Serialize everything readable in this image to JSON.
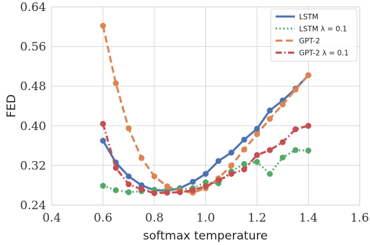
{
  "chart_data": {
    "type": "line",
    "xlabel": "softmax temperature",
    "ylabel": "FED",
    "xlim": [
      0.4,
      1.6
    ],
    "ylim": [
      0.24,
      0.64
    ],
    "xticks": [
      "0.4",
      "0.6",
      "0.8",
      "1.0",
      "1.2",
      "1.4",
      "1.6"
    ],
    "yticks": [
      "0.24",
      "0.32",
      "0.40",
      "0.48",
      "0.56",
      "0.64"
    ],
    "grid": true,
    "legend_position": "top-right",
    "series": [
      {
        "name": "LSTM",
        "color": "#4c72b0",
        "linestyle": "solid",
        "x": [
          0.6,
          0.65,
          0.7,
          0.75,
          0.8,
          0.85,
          0.9,
          0.95,
          1.0,
          1.05,
          1.1,
          1.15,
          1.2,
          1.25,
          1.3,
          1.35,
          1.4
        ],
        "y": [
          0.37,
          0.326,
          0.298,
          0.28,
          0.27,
          0.269,
          0.274,
          0.287,
          0.303,
          0.329,
          0.346,
          0.372,
          0.394,
          0.431,
          0.451,
          0.475,
          0.502
        ]
      },
      {
        "name": "LSTM λ = 0.1",
        "color": "#55a868",
        "linestyle": "dotted",
        "x": [
          0.6,
          0.65,
          0.7,
          0.75,
          0.8,
          0.85,
          0.9,
          0.95,
          1.0,
          1.05,
          1.1,
          1.15,
          1.2,
          1.25,
          1.3,
          1.35,
          1.4
        ],
        "y": [
          0.279,
          0.27,
          0.266,
          0.268,
          0.271,
          0.271,
          0.272,
          0.274,
          0.286,
          0.284,
          0.308,
          0.323,
          0.327,
          0.303,
          0.336,
          0.351,
          0.35
        ]
      },
      {
        "name": "GPT-2",
        "color": "#dd8452",
        "linestyle": "dashed",
        "x": [
          0.6,
          0.65,
          0.7,
          0.75,
          0.8,
          0.85,
          0.9,
          0.95,
          1.0,
          1.05,
          1.1,
          1.15,
          1.2,
          1.25,
          1.3,
          1.35,
          1.4
        ],
        "y": [
          0.602,
          0.486,
          0.395,
          0.335,
          0.298,
          0.278,
          0.268,
          0.265,
          0.274,
          0.294,
          0.32,
          0.352,
          0.383,
          0.414,
          0.443,
          0.473,
          0.502
        ]
      },
      {
        "name": "GPT-2 λ = 0.1",
        "color": "#c44e52",
        "linestyle": "dashdot",
        "x": [
          0.6,
          0.65,
          0.7,
          0.75,
          0.8,
          0.85,
          0.9,
          0.95,
          1.0,
          1.05,
          1.1,
          1.15,
          1.2,
          1.25,
          1.3,
          1.35,
          1.4
        ],
        "y": [
          0.404,
          0.315,
          0.282,
          0.272,
          0.264,
          0.265,
          0.266,
          0.27,
          0.278,
          0.29,
          0.303,
          0.312,
          0.341,
          0.351,
          0.367,
          0.393,
          0.4
        ]
      }
    ]
  }
}
